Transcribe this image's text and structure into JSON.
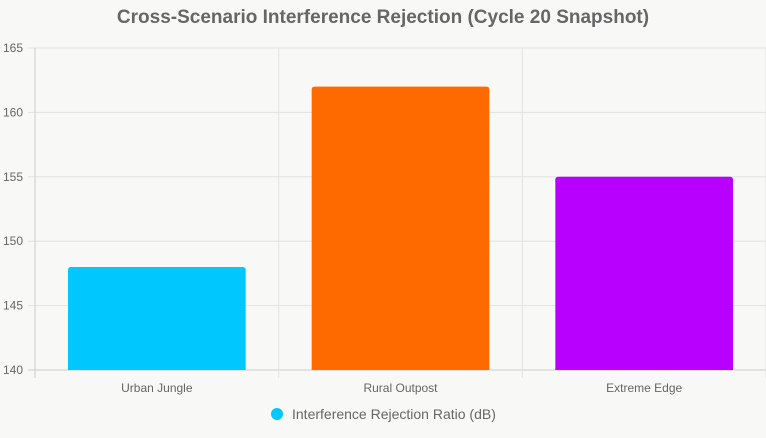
{
  "chart_data": {
    "type": "bar",
    "title": "Cross-Scenario Interference Rejection (Cycle 20 Snapshot)",
    "categories": [
      "Urban Jungle",
      "Rural Outpost",
      "Extreme Edge"
    ],
    "series": [
      {
        "name": "Interference Rejection Ratio (dB)",
        "values": [
          148,
          162,
          155
        ]
      }
    ],
    "colors": [
      "#00c8ff",
      "#ff6a00",
      "#b700ff"
    ],
    "ylim": [
      140,
      165
    ],
    "yticks": [
      140,
      145,
      150,
      155,
      160,
      165
    ],
    "grid": true,
    "legend": "bottom"
  }
}
